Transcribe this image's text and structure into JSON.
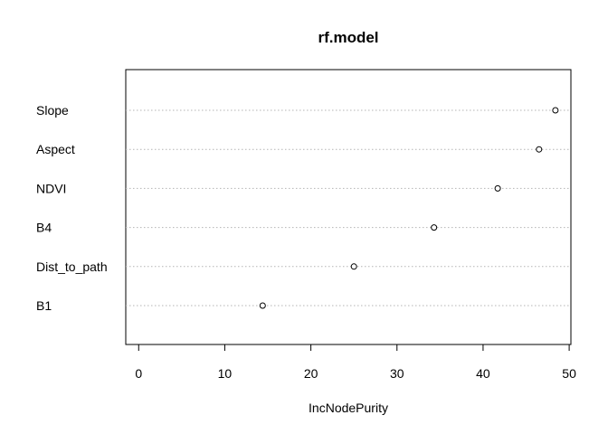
{
  "chart_data": {
    "type": "scatter",
    "subtype": "dotchart",
    "title": "rf.model",
    "xlabel": "IncNodePurity",
    "ylabel": "",
    "xlim": [
      -1.5,
      50.2
    ],
    "xticks": [
      0,
      10,
      20,
      30,
      40,
      50
    ],
    "grid": "dotted horizontal lines per category",
    "legend": "none",
    "categories": [
      "Slope",
      "Aspect",
      "NDVI",
      "B4",
      "Dist_to_path",
      "B1"
    ],
    "values": [
      48.4,
      46.5,
      41.7,
      34.3,
      25.0,
      14.4
    ]
  }
}
